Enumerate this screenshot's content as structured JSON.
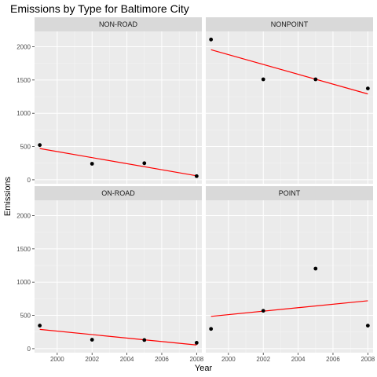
{
  "chart_data": {
    "type": "scatter",
    "title": "Emissions by Type for Baltimore City",
    "xlabel": "Year",
    "ylabel": "Emissions",
    "xlim": [
      1998.7,
      2008.3
    ],
    "ylim": [
      -60,
      2230
    ],
    "x_ticks": [
      2000,
      2002,
      2004,
      2006,
      2008
    ],
    "x_tick_labels": [
      "2000",
      "2002",
      "2004",
      "2006",
      "2008"
    ],
    "y_ticks": [
      0,
      500,
      1000,
      1500,
      2000
    ],
    "y_tick_labels": [
      "0",
      "500",
      "1000",
      "1500",
      "2000"
    ],
    "grid": true,
    "fit_color": "#ff0000",
    "point_color": "#000000",
    "panel_background": "#ebebeb",
    "strip_background": "#d9d9d9",
    "facets": [
      {
        "label": "NON-ROAD",
        "points": [
          {
            "x": 1999,
            "y": 522
          },
          {
            "x": 2002,
            "y": 241
          },
          {
            "x": 2005,
            "y": 249
          },
          {
            "x": 2008,
            "y": 55
          }
        ],
        "fit": [
          {
            "x": 1999,
            "y": 470
          },
          {
            "x": 2008,
            "y": 60
          }
        ]
      },
      {
        "label": "NONPOINT",
        "points": [
          {
            "x": 1999,
            "y": 2108
          },
          {
            "x": 2002,
            "y": 1510
          },
          {
            "x": 2005,
            "y": 1510
          },
          {
            "x": 2008,
            "y": 1373
          }
        ],
        "fit": [
          {
            "x": 1999,
            "y": 1955
          },
          {
            "x": 2008,
            "y": 1290
          }
        ]
      },
      {
        "label": "ON-ROAD",
        "points": [
          {
            "x": 1999,
            "y": 347
          },
          {
            "x": 2002,
            "y": 134
          },
          {
            "x": 2005,
            "y": 130
          },
          {
            "x": 2008,
            "y": 88
          }
        ],
        "fit": [
          {
            "x": 1999,
            "y": 290
          },
          {
            "x": 2008,
            "y": 55
          }
        ]
      },
      {
        "label": "POINT",
        "points": [
          {
            "x": 1999,
            "y": 297
          },
          {
            "x": 2002,
            "y": 569
          },
          {
            "x": 2005,
            "y": 1203
          },
          {
            "x": 2008,
            "y": 346
          }
        ],
        "fit": [
          {
            "x": 1999,
            "y": 485
          },
          {
            "x": 2008,
            "y": 720
          }
        ]
      }
    ]
  }
}
